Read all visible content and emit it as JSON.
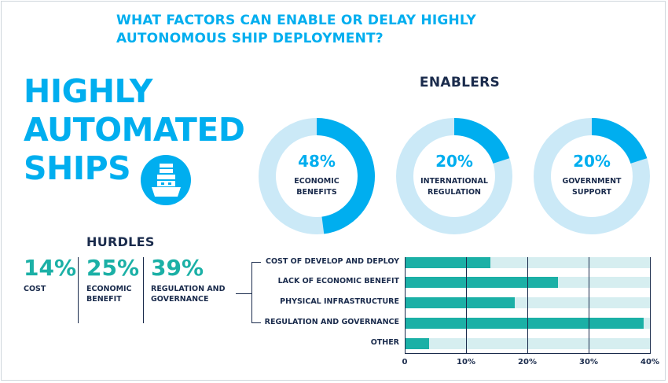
{
  "question": "WHAT FACTORS CAN ENABLE OR DELAY HIGHLY AUTONOMOUS SHIP DEPLOYMENT?",
  "main_title": [
    "HIGHLY",
    "AUTOMATED",
    "SHIPS"
  ],
  "icon": "ship-icon",
  "colors": {
    "accent_blue": "#00aeef",
    "light_blue": "#cbe9f7",
    "teal": "#1bb0a6",
    "light_teal": "#d6eef0",
    "navy": "#1a2b4c"
  },
  "enablers": {
    "title": "ENABLERS",
    "items": [
      {
        "pct": "48%",
        "value": 48,
        "label": [
          "ECONOMIC",
          "BENEFITS"
        ]
      },
      {
        "pct": "20%",
        "value": 20,
        "label": [
          "INTERNATIONAL",
          "REGULATION"
        ]
      },
      {
        "pct": "20%",
        "value": 20,
        "label": [
          "GOVERNMENT",
          "SUPPORT"
        ]
      }
    ]
  },
  "hurdles": {
    "title": "HURDLES",
    "items": [
      {
        "pct": "14%",
        "label": [
          "COST"
        ]
      },
      {
        "pct": "25%",
        "label": [
          "ECONOMIC",
          "BENEFIT"
        ]
      },
      {
        "pct": "39%",
        "label": [
          "REGULATION AND",
          "GOVERNANCE"
        ]
      }
    ]
  },
  "chart_data": [
    {
      "type": "pie",
      "values": [
        48,
        20,
        20
      ],
      "categories": [
        "ECONOMIC BENEFITS",
        "INTERNATIONAL REGULATION",
        "GOVERNMENT SUPPORT"
      ],
      "title": "ENABLERS"
    },
    {
      "type": "bar",
      "orientation": "horizontal",
      "categories": [
        "COST OF DEVELOP AND DEPLOY",
        "LACK OF ECONOMIC BENEFIT",
        "PHYSICAL INFRASTRUCTURE",
        "REGULATION AND GOVERNANCE",
        "OTHER"
      ],
      "values": [
        14,
        25,
        18,
        39,
        4
      ],
      "xlim": [
        0,
        40
      ],
      "xticks": [
        "0",
        "10%",
        "20%",
        "30%",
        "40%"
      ],
      "grid": true
    }
  ]
}
